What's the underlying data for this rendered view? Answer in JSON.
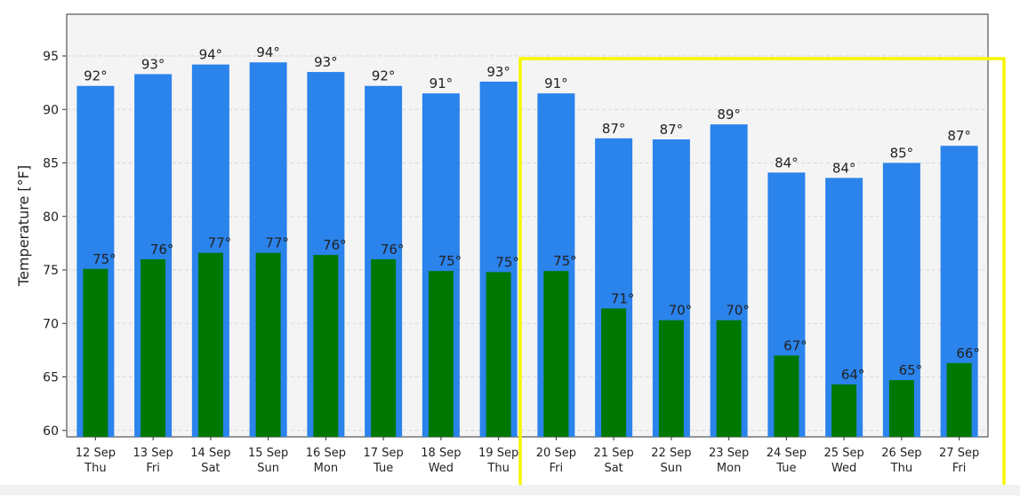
{
  "colors": {
    "max_bar": "#2b83ec",
    "min_bar": "#007800",
    "plot_bg": "#f4f4f4",
    "highlight": "#f6f600",
    "grid": "#d8d8d8"
  },
  "chart_data": {
    "type": "bar",
    "title": "",
    "xlabel": "",
    "ylabel": "Temperature [°F]",
    "ylim": [
      59.4,
      98.9
    ],
    "yticks": [
      60,
      65,
      70,
      75,
      80,
      85,
      90,
      95
    ],
    "grid": true,
    "categories": [
      {
        "date": "12 Sep",
        "day": "Thu"
      },
      {
        "date": "13 Sep",
        "day": "Fri"
      },
      {
        "date": "14 Sep",
        "day": "Sat"
      },
      {
        "date": "15 Sep",
        "day": "Sun"
      },
      {
        "date": "16 Sep",
        "day": "Mon"
      },
      {
        "date": "17 Sep",
        "day": "Tue"
      },
      {
        "date": "18 Sep",
        "day": "Wed"
      },
      {
        "date": "19 Sep",
        "day": "Thu"
      },
      {
        "date": "20 Sep",
        "day": "Fri"
      },
      {
        "date": "21 Sep",
        "day": "Sat"
      },
      {
        "date": "22 Sep",
        "day": "Sun"
      },
      {
        "date": "23 Sep",
        "day": "Mon"
      },
      {
        "date": "24 Sep",
        "day": "Tue"
      },
      {
        "date": "25 Sep",
        "day": "Wed"
      },
      {
        "date": "26 Sep",
        "day": "Thu"
      },
      {
        "date": "27 Sep",
        "day": "Fri"
      }
    ],
    "series": [
      {
        "values": [
          92.2,
          93.3,
          94.2,
          94.4,
          93.5,
          92.2,
          91.5,
          92.6,
          91.5,
          87.3,
          87.2,
          88.6,
          84.1,
          83.6,
          85.0,
          86.6
        ],
        "labels": [
          "92°",
          "93°",
          "94°",
          "94°",
          "93°",
          "92°",
          "91°",
          "93°",
          "91°",
          "87°",
          "87°",
          "89°",
          "84°",
          "84°",
          "85°",
          "87°"
        ]
      },
      {
        "values": [
          75.1,
          76.0,
          76.6,
          76.6,
          76.4,
          76.0,
          74.9,
          74.8,
          74.9,
          71.4,
          70.3,
          70.3,
          67.0,
          64.3,
          64.7,
          66.3
        ],
        "labels": [
          "75°",
          "76°",
          "77°",
          "77°",
          "76°",
          "76°",
          "75°",
          "75°",
          "75°",
          "71°",
          "70°",
          "70°",
          "67°",
          "64°",
          "65°",
          "66°"
        ]
      }
    ],
    "highlight_range": {
      "from_index": 8,
      "to_index": 15
    }
  }
}
